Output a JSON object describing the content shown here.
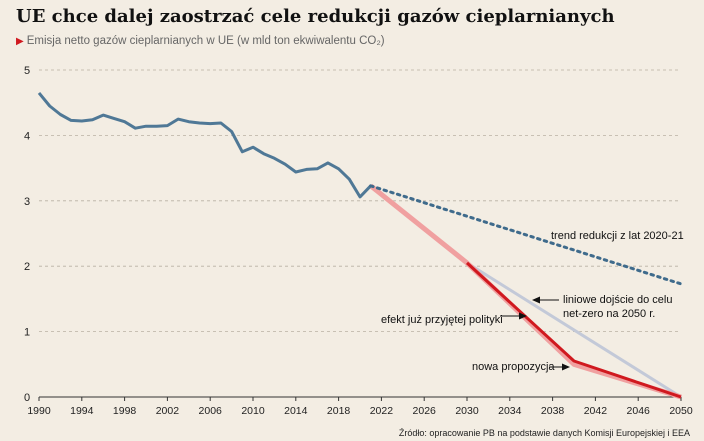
{
  "title": "UE chce dalej zaostrzać cele redukcji gazów cieplarnianych",
  "subtitle": "Emisja netto gazów cieplarnianych w UE (w mld ton ekwiwalentu CO₂)",
  "source": "Źródło: opracowanie PB na podstawie danych Komisji Europejskiej i EEA",
  "colors": {
    "background": "#f3ede3",
    "historical": "#4f7896",
    "trend": "#3f6b8c",
    "linear": "#c3c9d8",
    "policy": "#f0a0a0",
    "proposal": "#d0191f",
    "grid": "#b9b1a3"
  },
  "chart_data": {
    "type": "line",
    "xlim": [
      1990,
      2050
    ],
    "ylim": [
      0,
      5
    ],
    "xticks": [
      "1990",
      "1994",
      "1998",
      "2002",
      "2006",
      "2010",
      "2014",
      "2018",
      "2022",
      "2026",
      "2030",
      "2034",
      "2038",
      "2042",
      "2046",
      "2050"
    ],
    "yticks": [
      "0",
      "1",
      "2",
      "3",
      "4",
      "5"
    ],
    "grid": true,
    "series": [
      {
        "key": "historical",
        "x": [
          1990,
          1991,
          1992,
          1993,
          1994,
          1995,
          1996,
          1997,
          1998,
          1999,
          2000,
          2001,
          2002,
          2003,
          2004,
          2005,
          2006,
          2007,
          2008,
          2009,
          2010,
          2011,
          2012,
          2013,
          2014,
          2015,
          2016,
          2017,
          2018,
          2019,
          2020,
          2021
        ],
        "y": [
          4.65,
          4.45,
          4.32,
          4.23,
          4.22,
          4.24,
          4.31,
          4.26,
          4.21,
          4.11,
          4.14,
          4.14,
          4.15,
          4.25,
          4.21,
          4.19,
          4.18,
          4.19,
          4.06,
          3.75,
          3.82,
          3.72,
          3.65,
          3.56,
          3.44,
          3.48,
          3.49,
          3.58,
          3.49,
          3.33,
          3.06,
          3.23
        ]
      },
      {
        "key": "trend",
        "name": "trend redukcji z lat 2020-21",
        "x": [
          2021,
          2050
        ],
        "y": [
          3.23,
          1.73
        ]
      },
      {
        "key": "linear",
        "name": "liniowe dojście do celu net-zero na 2050 r.",
        "x": [
          2030,
          2050
        ],
        "y": [
          2.05,
          0.0
        ]
      },
      {
        "key": "policy",
        "name": "efekt już przyjętej polityki",
        "x": [
          2021,
          2030,
          2040,
          2050
        ],
        "y": [
          3.23,
          2.05,
          0.5,
          0.0
        ]
      },
      {
        "key": "proposal",
        "name": "nowa propozycja",
        "x": [
          2030,
          2040,
          2050
        ],
        "y": [
          2.05,
          0.55,
          0.0
        ]
      }
    ],
    "annotations": {
      "trend": "trend redukcji z lat 2020-21",
      "linear_line1": "liniowe dojście do celu",
      "linear_line2": "net-zero na 2050 r.",
      "policy": "efekt już przyjętej polityki",
      "proposal": "nowa propozycja"
    }
  }
}
